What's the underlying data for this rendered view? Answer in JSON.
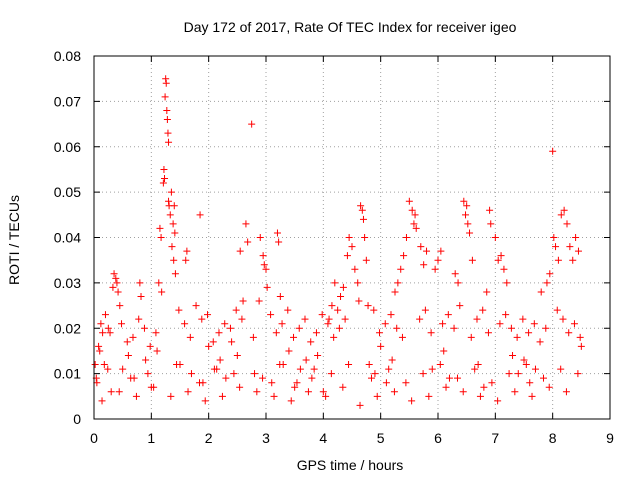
{
  "chart_data": {
    "type": "scatter",
    "title": "Day 172 of 2017, Rate Of TEC Index for receiver igeo",
    "xlabel": "GPS time / hours",
    "ylabel": "ROTI / TECUs",
    "xlim": [
      0,
      9
    ],
    "ylim": [
      0,
      0.08
    ],
    "xticks": [
      0,
      1,
      2,
      3,
      4,
      5,
      6,
      7,
      8,
      9
    ],
    "yticks": [
      0,
      0.01,
      0.02,
      0.03,
      0.04,
      0.05,
      0.06,
      0.07,
      0.08
    ],
    "xtick_labels": [
      "0",
      "1",
      "2",
      "3",
      "4",
      "5",
      "6",
      "7",
      "8",
      "9"
    ],
    "ytick_labels": [
      "0",
      "0.01",
      "0.02",
      "0.03",
      "0.04",
      "0.05",
      "0.06",
      "0.07",
      "0.08"
    ],
    "grid": true,
    "marker": "+",
    "marker_color": "#ff0000",
    "series": [
      {
        "name": "ROTI",
        "x": [
          1.25,
          1.26,
          1.24,
          1.27,
          1.28,
          1.29,
          1.3,
          1.22,
          1.23,
          1.21,
          1.3,
          1.31,
          1.4,
          1.38,
          1.41,
          1.39,
          1.42,
          1.6,
          1.62,
          1.78,
          1.85,
          1.15,
          1.17,
          1.13,
          1.18,
          1.33,
          1.35,
          1.36,
          2.75,
          2.65,
          2.68,
          2.9,
          2.95,
          2.97,
          3.0,
          3.02,
          2.55,
          2.6,
          3.2,
          3.22,
          3.25,
          0.35,
          0.38,
          0.4,
          0.42,
          0.45,
          0.33,
          0.8,
          0.82,
          0.1,
          0.12,
          0.15,
          0.2,
          0.25,
          4.45,
          4.5,
          4.42,
          4.55,
          4.35,
          4.3,
          4.25,
          4.2,
          4.65,
          4.68,
          4.7,
          4.72,
          4.75,
          4.6,
          4.62,
          4.1,
          4.15,
          5.5,
          5.55,
          5.6,
          5.58,
          5.62,
          5.7,
          5.45,
          5.4,
          5.35,
          5.3,
          5.25,
          5.8,
          5.75,
          6.45,
          6.5,
          6.48,
          6.52,
          6.55,
          6.6,
          6.3,
          6.35,
          6.0,
          5.95,
          6.05,
          6.9,
          6.92,
          7.0,
          7.05,
          7.1,
          7.15,
          7.2,
          6.85,
          8.0,
          8.02,
          8.05,
          8.1,
          8.15,
          8.2,
          8.25,
          8.3,
          8.35,
          7.9,
          7.95,
          8.4,
          8.45,
          7.8,
          0.02,
          0.05,
          0.08,
          0.3,
          0.5,
          0.6,
          0.7,
          0.9,
          1.0,
          1.1,
          1.5,
          1.7,
          1.9,
          2.0,
          2.1,
          2.2,
          2.3,
          2.4,
          2.5,
          2.8,
          3.1,
          3.3,
          3.4,
          3.5,
          3.6,
          3.7,
          3.8,
          3.9,
          4.0,
          4.8,
          4.9,
          5.0,
          5.1,
          5.2,
          5.9,
          6.1,
          6.2,
          6.7,
          6.8,
          7.3,
          7.4,
          7.5,
          7.6,
          7.7,
          8.5,
          0.04,
          0.18,
          0.28,
          0.48,
          0.58,
          0.68,
          0.78,
          0.88,
          0.98,
          1.08,
          1.48,
          1.58,
          1.68,
          1.88,
          1.98,
          2.08,
          2.18,
          2.28,
          2.38,
          2.48,
          2.58,
          2.78,
          2.88,
          3.08,
          3.18,
          3.28,
          3.38,
          3.48,
          3.58,
          3.68,
          3.78,
          3.88,
          3.98,
          4.08,
          4.18,
          4.28,
          4.38,
          4.78,
          4.88,
          4.98,
          5.08,
          5.18,
          5.28,
          5.38,
          5.68,
          5.78,
          5.88,
          6.08,
          6.18,
          6.28,
          6.38,
          6.58,
          6.68,
          6.78,
          6.88,
          7.08,
          7.18,
          7.28,
          7.38,
          7.48,
          7.58,
          7.68,
          7.78,
          7.88,
          8.08,
          8.18,
          8.28,
          8.38,
          8.48,
          0.14,
          0.44,
          0.74,
          1.04,
          1.34,
          1.64,
          1.94,
          2.24,
          2.54,
          2.84,
          3.14,
          3.44,
          3.74,
          4.04,
          4.34,
          4.64,
          4.94,
          5.24,
          5.54,
          5.84,
          6.14,
          6.44,
          6.74,
          7.04,
          7.34,
          7.64,
          7.94,
          8.24,
          0.24,
          0.64,
          0.94,
          1.44,
          1.84,
          2.14,
          2.44,
          2.94,
          3.24,
          3.54,
          3.84,
          4.14,
          4.44,
          4.84,
          5.14,
          5.44,
          5.74,
          6.04,
          6.34,
          6.64,
          6.94,
          7.24,
          7.54,
          7.84,
          8.14,
          8.44
        ],
        "y": [
          0.075,
          0.074,
          0.071,
          0.068,
          0.066,
          0.063,
          0.061,
          0.055,
          0.053,
          0.052,
          0.048,
          0.047,
          0.047,
          0.043,
          0.041,
          0.035,
          0.032,
          0.035,
          0.037,
          0.025,
          0.045,
          0.042,
          0.04,
          0.03,
          0.028,
          0.045,
          0.05,
          0.038,
          0.065,
          0.043,
          0.039,
          0.04,
          0.036,
          0.034,
          0.033,
          0.029,
          0.037,
          0.026,
          0.041,
          0.039,
          0.027,
          0.032,
          0.031,
          0.03,
          0.028,
          0.025,
          0.029,
          0.03,
          0.027,
          0.015,
          0.021,
          0.019,
          0.023,
          0.02,
          0.04,
          0.038,
          0.036,
          0.033,
          0.029,
          0.027,
          0.024,
          0.03,
          0.047,
          0.046,
          0.044,
          0.04,
          0.035,
          0.03,
          0.026,
          0.022,
          0.025,
          0.048,
          0.046,
          0.045,
          0.043,
          0.042,
          0.038,
          0.04,
          0.036,
          0.033,
          0.03,
          0.028,
          0.037,
          0.034,
          0.048,
          0.047,
          0.045,
          0.043,
          0.041,
          0.035,
          0.032,
          0.03,
          0.035,
          0.033,
          0.037,
          0.046,
          0.043,
          0.04,
          0.035,
          0.036,
          0.033,
          0.03,
          0.028,
          0.059,
          0.04,
          0.038,
          0.035,
          0.045,
          0.046,
          0.043,
          0.038,
          0.035,
          0.03,
          0.032,
          0.04,
          0.037,
          0.028,
          0.012,
          0.008,
          0.016,
          0.006,
          0.011,
          0.014,
          0.009,
          0.013,
          0.007,
          0.015,
          0.012,
          0.01,
          0.008,
          0.016,
          0.011,
          0.013,
          0.009,
          0.017,
          0.014,
          0.01,
          0.008,
          0.012,
          0.015,
          0.007,
          0.011,
          0.013,
          0.009,
          0.014,
          0.006,
          0.012,
          0.01,
          0.016,
          0.008,
          0.013,
          0.011,
          0.015,
          0.009,
          0.012,
          0.007,
          0.014,
          0.01,
          0.013,
          0.008,
          0.011,
          0.016,
          0.009,
          0.012,
          0.019,
          0.021,
          0.017,
          0.018,
          0.022,
          0.02,
          0.016,
          0.019,
          0.024,
          0.021,
          0.018,
          0.022,
          0.023,
          0.017,
          0.019,
          0.021,
          0.02,
          0.024,
          0.022,
          0.018,
          0.026,
          0.023,
          0.019,
          0.021,
          0.024,
          0.018,
          0.02,
          0.022,
          0.017,
          0.019,
          0.023,
          0.021,
          0.018,
          0.02,
          0.022,
          0.025,
          0.024,
          0.019,
          0.021,
          0.023,
          0.02,
          0.018,
          0.022,
          0.024,
          0.019,
          0.021,
          0.023,
          0.02,
          0.025,
          0.018,
          0.022,
          0.024,
          0.019,
          0.021,
          0.023,
          0.02,
          0.018,
          0.022,
          0.019,
          0.021,
          0.017,
          0.02,
          0.024,
          0.022,
          0.019,
          0.021,
          0.018,
          0.004,
          0.006,
          0.005,
          0.007,
          0.005,
          0.006,
          0.004,
          0.005,
          0.007,
          0.006,
          0.005,
          0.004,
          0.006,
          0.005,
          0.007,
          0.003,
          0.005,
          0.006,
          0.004,
          0.005,
          0.007,
          0.006,
          0.005,
          0.004,
          0.006,
          0.005,
          0.007,
          0.006,
          0.011,
          0.009,
          0.01,
          0.012,
          0.008,
          0.011,
          0.01,
          0.009,
          0.012,
          0.008,
          0.011,
          0.01,
          0.012,
          0.009,
          0.011,
          0.008,
          0.01,
          0.012,
          0.009,
          0.011,
          0.008,
          0.01,
          0.012,
          0.009,
          0.011,
          0.01
        ]
      }
    ]
  }
}
